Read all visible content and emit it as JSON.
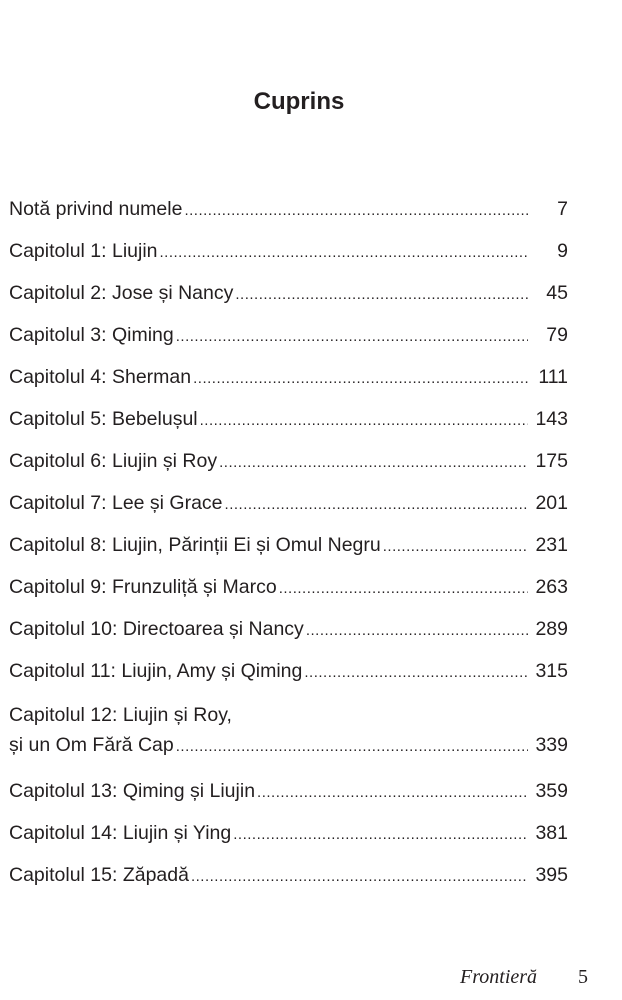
{
  "title": "Cuprins",
  "entries": [
    {
      "label": "Notă privind numele",
      "page": "7"
    },
    {
      "label": "Capitolul 1: Liujin",
      "page": "9"
    },
    {
      "label": "Capitolul 2: Jose și Nancy",
      "page": "45"
    },
    {
      "label": "Capitolul 3: Qiming",
      "page": "79"
    },
    {
      "label": "Capitolul 4: Sherman",
      "page": "111"
    },
    {
      "label": "Capitolul 5: Bebelușul",
      "page": "143"
    },
    {
      "label": "Capitolul 6: Liujin și Roy",
      "page": "175"
    },
    {
      "label": "Capitolul 7: Lee și Grace",
      "page": "201"
    },
    {
      "label": "Capitolul 8: Liujin, Părinții Ei și Omul Negru",
      "page": "231"
    },
    {
      "label": "Capitolul 9: Frunzuliță și Marco",
      "page": "263"
    },
    {
      "label": "Capitolul 10: Directoarea și Nancy",
      "page": "289"
    },
    {
      "label": "Capitolul 11: Liujin, Amy și Qiming",
      "page": "315"
    },
    {
      "label": "Capitolul 12: Liujin și Roy,",
      "label2": "și un Om Fără Cap",
      "page": "339"
    },
    {
      "label": "Capitolul 13: Qiming și Liujin",
      "page": "359"
    },
    {
      "label": "Capitolul 14: Liujin și Ying",
      "page": "381"
    },
    {
      "label": "Capitolul 15: Zăpadă",
      "page": "395"
    }
  ],
  "footer": {
    "book_title": "Frontieră",
    "page_number": "5"
  }
}
